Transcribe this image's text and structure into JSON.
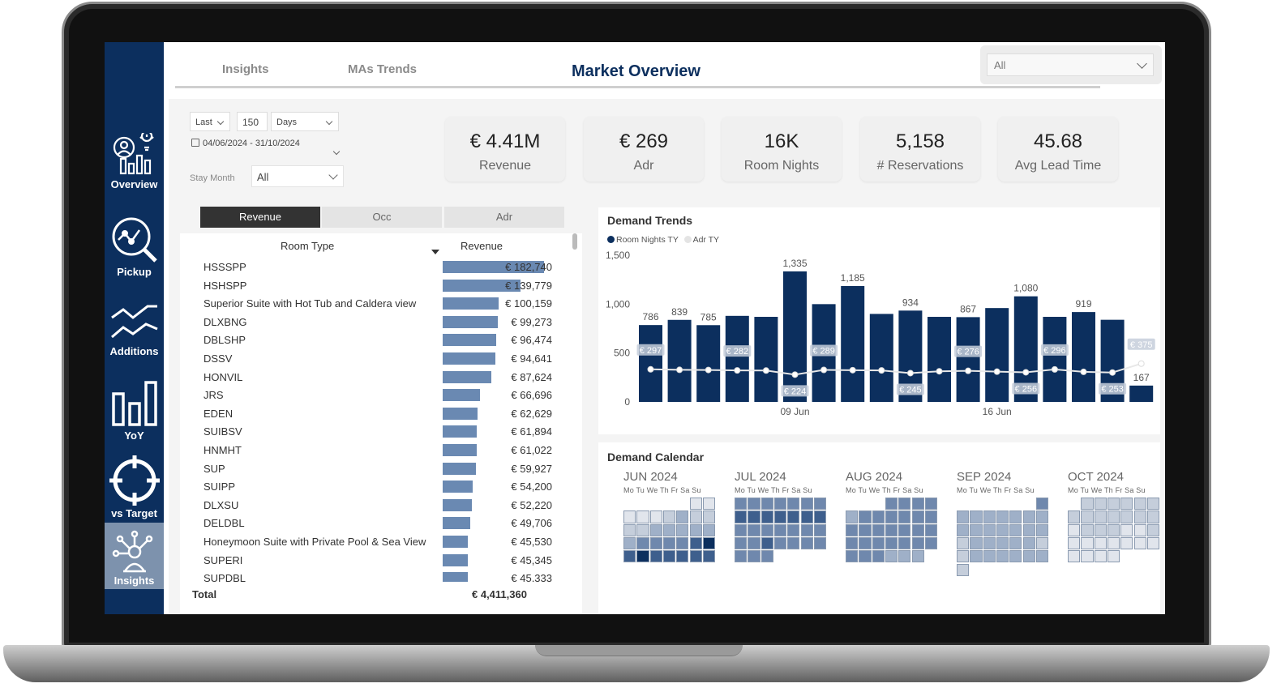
{
  "sidebar": {
    "items": [
      {
        "label": "Overview",
        "icon": "overview-icon"
      },
      {
        "label": "Pickup",
        "icon": "pickup-icon"
      },
      {
        "label": "Additions",
        "icon": "additions-icon"
      },
      {
        "label": "YoY",
        "icon": "yoy-icon"
      },
      {
        "label": "vs Target",
        "icon": "target-icon"
      },
      {
        "label": "Insights",
        "icon": "insights-icon",
        "active": true
      }
    ]
  },
  "header": {
    "tabs": [
      "Insights",
      "MAs Trends"
    ],
    "title": "Market Overview",
    "selector": "All"
  },
  "filters": {
    "relative": "Last",
    "count": "150",
    "unit": "Days",
    "date_range": "04/06/2024 - 31/10/2024",
    "stay_month_label": "Stay Month",
    "stay_month_value": "All"
  },
  "kpis": [
    {
      "value": "€ 4.41M",
      "label": "Revenue"
    },
    {
      "value": "€ 269",
      "label": "Adr"
    },
    {
      "value": "16K",
      "label": "Room Nights"
    },
    {
      "value": "5,158",
      "label": "# Reservations"
    },
    {
      "value": "45.68",
      "label": "Avg Lead Time"
    }
  ],
  "segments": {
    "revenue": "Revenue",
    "occ": "Occ",
    "adr": "Adr",
    "selected": "Revenue"
  },
  "table": {
    "col_room": "Room Type",
    "col_revenue": "Revenue",
    "total_label": "Total",
    "total_value": "€ 4,411,360",
    "rows": [
      {
        "name": "HSSSPP",
        "value": 182740,
        "display": "€ 182,740"
      },
      {
        "name": "HSHSPP",
        "value": 139779,
        "display": "€ 139,779"
      },
      {
        "name": "Superior Suite with Hot Tub and Caldera view",
        "value": 100159,
        "display": "€ 100,159"
      },
      {
        "name": "DLXBNG",
        "value": 99273,
        "display": "€ 99,273"
      },
      {
        "name": "DBLSHP",
        "value": 96474,
        "display": "€ 96,474"
      },
      {
        "name": "DSSV",
        "value": 94641,
        "display": "€ 94,641"
      },
      {
        "name": "HONVIL",
        "value": 87624,
        "display": "€ 87,624"
      },
      {
        "name": "JRS",
        "value": 66696,
        "display": "€ 66,696"
      },
      {
        "name": "EDEN",
        "value": 62629,
        "display": "€ 62,629"
      },
      {
        "name": "SUIBSV",
        "value": 61894,
        "display": "€ 61,894"
      },
      {
        "name": "HNMHT",
        "value": 61022,
        "display": "€ 61,022"
      },
      {
        "name": "SUP",
        "value": 59927,
        "display": "€ 59,927"
      },
      {
        "name": "SUIPP",
        "value": 54200,
        "display": "€ 54,200"
      },
      {
        "name": "DLXSU",
        "value": 52220,
        "display": "€ 52,220"
      },
      {
        "name": "DELDBL",
        "value": 49706,
        "display": "€ 49,706"
      },
      {
        "name": "Honeymoon Suite with Private Pool & Sea View",
        "value": 45530,
        "display": "€ 45,530"
      },
      {
        "name": "SUPERI",
        "value": 45345,
        "display": "€ 45,345"
      },
      {
        "name": "SUPDBL",
        "value": 45333,
        "display": "€ 45,333"
      }
    ]
  },
  "demand_trends": {
    "title": "Demand Trends",
    "legend": [
      "Room Nights TY",
      "Adr TY"
    ],
    "colors": {
      "room_nights": "#0c2f5e",
      "adr": "#d0d6df"
    }
  },
  "chart_data": {
    "type": "bar",
    "title": "Demand Trends",
    "ylim": [
      0,
      1500
    ],
    "yticks": [
      "1,500",
      "1,000",
      "500",
      "0"
    ],
    "x_tick_labels": [
      {
        "index": 5,
        "label": "09 Jun"
      },
      {
        "index": 12,
        "label": "16 Jun"
      }
    ],
    "series": [
      {
        "name": "Room Nights TY",
        "type": "bar",
        "values": [
          786,
          839,
          785,
          880,
          870,
          1335,
          1000,
          1185,
          900,
          934,
          870,
          867,
          960,
          1080,
          870,
          919,
          840,
          167
        ]
      },
      {
        "name": "Adr TY",
        "type": "line",
        "values": [
          297,
          290,
          288,
          282,
          280,
          224,
          289,
          285,
          282,
          245,
          270,
          276,
          265,
          256,
          296,
          262,
          253,
          375
        ]
      }
    ],
    "bar_labels": {
      "0": "786",
      "1": "839",
      "2": "785",
      "5": "1,335",
      "7": "1,185",
      "9": "934",
      "11": "867",
      "13": "1,080",
      "15": "919",
      "17": "167"
    },
    "line_labels": {
      "0": "€ 297",
      "3": "€ 282",
      "5": "€ 224",
      "6": "€ 289",
      "9": "€ 245",
      "11": "€ 276",
      "13": "€ 256",
      "14": "€ 296",
      "16": "€ 253",
      "17": "€ 375"
    }
  },
  "demand_calendar": {
    "title": "Demand Calendar",
    "weekdays": "Mo Tu We Th Fr Sa Su",
    "months": [
      {
        "name": "JUN 2024",
        "start": 5,
        "days": 30,
        "levels": [
          0,
          0,
          0,
          0,
          0,
          1,
          2,
          1,
          1,
          1,
          1,
          2,
          2,
          2,
          2,
          2,
          2,
          3,
          3,
          3,
          3,
          4,
          5,
          4,
          5,
          4,
          4,
          4,
          4,
          4
        ]
      },
      {
        "name": "JUL 2024",
        "start": 0,
        "days": 31,
        "levels": [
          3,
          3,
          3,
          3,
          3,
          3,
          3,
          4,
          4,
          4,
          4,
          4,
          4,
          4,
          3,
          3,
          3,
          3,
          3,
          3,
          3,
          3,
          3,
          4,
          3,
          3,
          3,
          3,
          3,
          3,
          3
        ]
      },
      {
        "name": "AUG 2024",
        "start": 3,
        "days": 31,
        "levels": [
          3,
          3,
          3,
          3,
          2,
          3,
          3,
          3,
          3,
          3,
          3,
          3,
          3,
          3,
          3,
          3,
          3,
          3,
          3,
          3,
          3,
          3,
          3,
          3,
          3,
          3,
          3,
          3,
          2,
          2,
          2
        ]
      },
      {
        "name": "SEP 2024",
        "start": 6,
        "days": 30,
        "levels": [
          3,
          2,
          2,
          2,
          2,
          2,
          2,
          2,
          2,
          2,
          2,
          2,
          2,
          2,
          2,
          1,
          2,
          2,
          2,
          2,
          2,
          1,
          1,
          2,
          2,
          2,
          2,
          2,
          2,
          1
        ]
      },
      {
        "name": "OCT 2024",
        "start": 1,
        "days": 31,
        "levels": [
          1,
          1,
          1,
          1,
          1,
          1,
          1,
          1,
          1,
          1,
          1,
          1,
          1,
          0,
          1,
          1,
          1,
          0,
          0,
          1,
          0,
          0,
          0,
          0,
          0,
          0,
          0,
          0,
          0,
          0,
          0
        ]
      }
    ]
  }
}
